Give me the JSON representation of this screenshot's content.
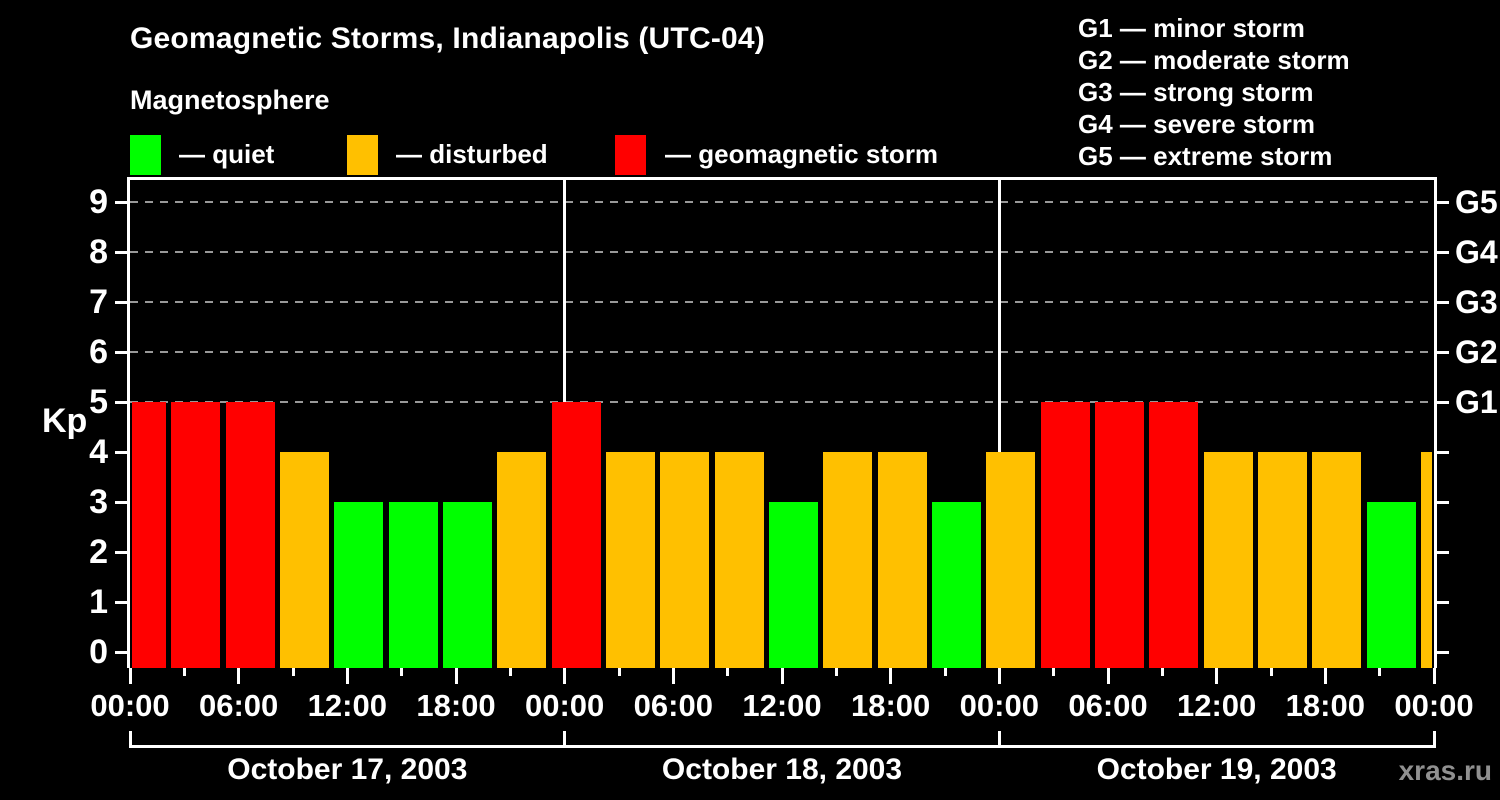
{
  "header": {
    "title": "Geomagnetic Storms, Indianapolis (UTC-04)",
    "subtitle": "Magnetosphere"
  },
  "legend": {
    "items": [
      {
        "key": "quiet",
        "label": "— quiet"
      },
      {
        "key": "disturbed",
        "label": "— disturbed"
      },
      {
        "key": "storm",
        "label": "— geomagnetic storm"
      }
    ]
  },
  "g_legend": {
    "items": [
      "G1 — minor storm",
      "G2 — moderate storm",
      "G3 — strong storm",
      "G4 — severe storm",
      "G5 — extreme storm"
    ]
  },
  "watermark": "xras.ru",
  "chart_data": {
    "type": "bar",
    "title": "Geomagnetic Storms, Indianapolis (UTC-04)",
    "ylabel": "Kp",
    "ylim": [
      0,
      9.5
    ],
    "y_ticks": [
      0,
      1,
      2,
      3,
      4,
      5,
      6,
      7,
      8,
      9
    ],
    "gridlines_at_kp": [
      5,
      6,
      7,
      8,
      9
    ],
    "grid_style": "dashed",
    "right_axis_labels": [
      {
        "kp": 5,
        "label": "G1"
      },
      {
        "kp": 6,
        "label": "G2"
      },
      {
        "kp": 7,
        "label": "G3"
      },
      {
        "kp": 8,
        "label": "G4"
      },
      {
        "kp": 9,
        "label": "G5"
      }
    ],
    "hours_per_bar": 3,
    "x_minor_tick_hours": 3,
    "x_major_tick_hours": 6,
    "x_major_tick_labels": [
      "00:00",
      "06:00",
      "12:00",
      "18:00",
      "00:00",
      "06:00",
      "12:00",
      "18:00",
      "00:00",
      "06:00",
      "12:00",
      "18:00",
      "00:00"
    ],
    "days": [
      {
        "date": "October 17, 2003",
        "kp": [
          5,
          5,
          5,
          4,
          3,
          3,
          3,
          4
        ]
      },
      {
        "date": "October 18, 2003",
        "kp": [
          5,
          4,
          4,
          4,
          3,
          4,
          4,
          3
        ]
      },
      {
        "date": "October 19, 2003",
        "kp": [
          4,
          5,
          5,
          5,
          4,
          4,
          4,
          3
        ]
      }
    ],
    "partial_next_day_kp": [
      4
    ],
    "level_rules": {
      "quiet_kp_max": 3,
      "disturbed_kp": 4,
      "storm_kp_min": 5
    },
    "colors": {
      "quiet": "#00FF00",
      "disturbed": "#FFC000",
      "storm": "#FF0000",
      "axis": "#FFFFFF",
      "grid": "#999999",
      "background": "#000000",
      "watermark": "#909090"
    }
  }
}
